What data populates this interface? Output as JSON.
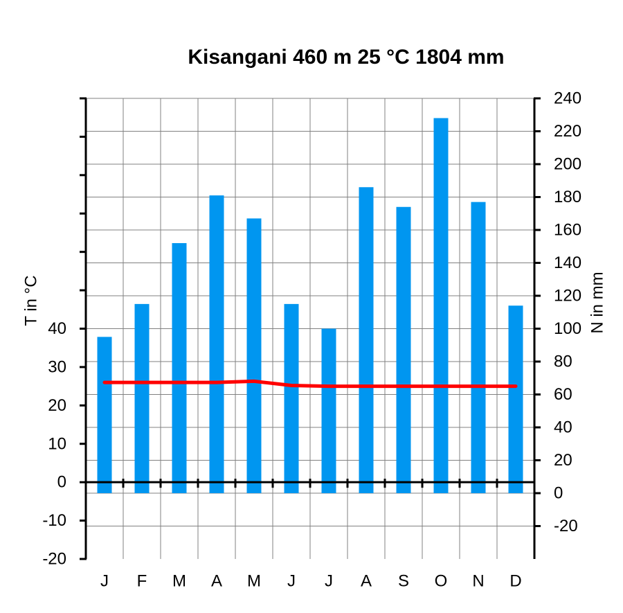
{
  "chart_data": {
    "type": "bar",
    "title": "Kisangani  460 m  25 °C  1804 mm",
    "categories": [
      "J",
      "F",
      "M",
      "A",
      "M",
      "J",
      "J",
      "A",
      "S",
      "O",
      "N",
      "D"
    ],
    "series": [
      {
        "name": "",
        "kind": "bar",
        "axis": "right",
        "color": "#0096f0",
        "values": [
          95,
          115,
          152,
          181,
          167,
          115,
          100,
          186,
          174,
          228,
          177,
          114
        ]
      },
      {
        "name": "",
        "kind": "line",
        "axis": "left",
        "color": "#ff0000",
        "values": [
          26,
          26,
          26,
          26,
          26.3,
          25.2,
          25,
          25,
          25,
          25,
          25,
          25
        ]
      }
    ],
    "left_axis": {
      "label": "T in °C",
      "range": [
        -20,
        100
      ],
      "tick_labels": [
        "-20",
        "-10",
        "0",
        "10",
        "20",
        "30",
        "40"
      ],
      "tick_values": [
        -20,
        -10,
        0,
        10,
        20,
        30,
        40
      ],
      "unlabeled_ticks": [
        50,
        60,
        70,
        80,
        90,
        100
      ]
    },
    "right_axis": {
      "label": "N in mm",
      "range": [
        -40,
        240
      ],
      "tick_labels": [
        "-20",
        "0",
        "20",
        "40",
        "60",
        "80",
        "100",
        "120",
        "140",
        "160",
        "180",
        "200",
        "220",
        "240"
      ],
      "tick_values": [
        -20,
        0,
        20,
        40,
        60,
        80,
        100,
        120,
        140,
        160,
        180,
        200,
        220,
        240
      ]
    },
    "grid": true
  }
}
